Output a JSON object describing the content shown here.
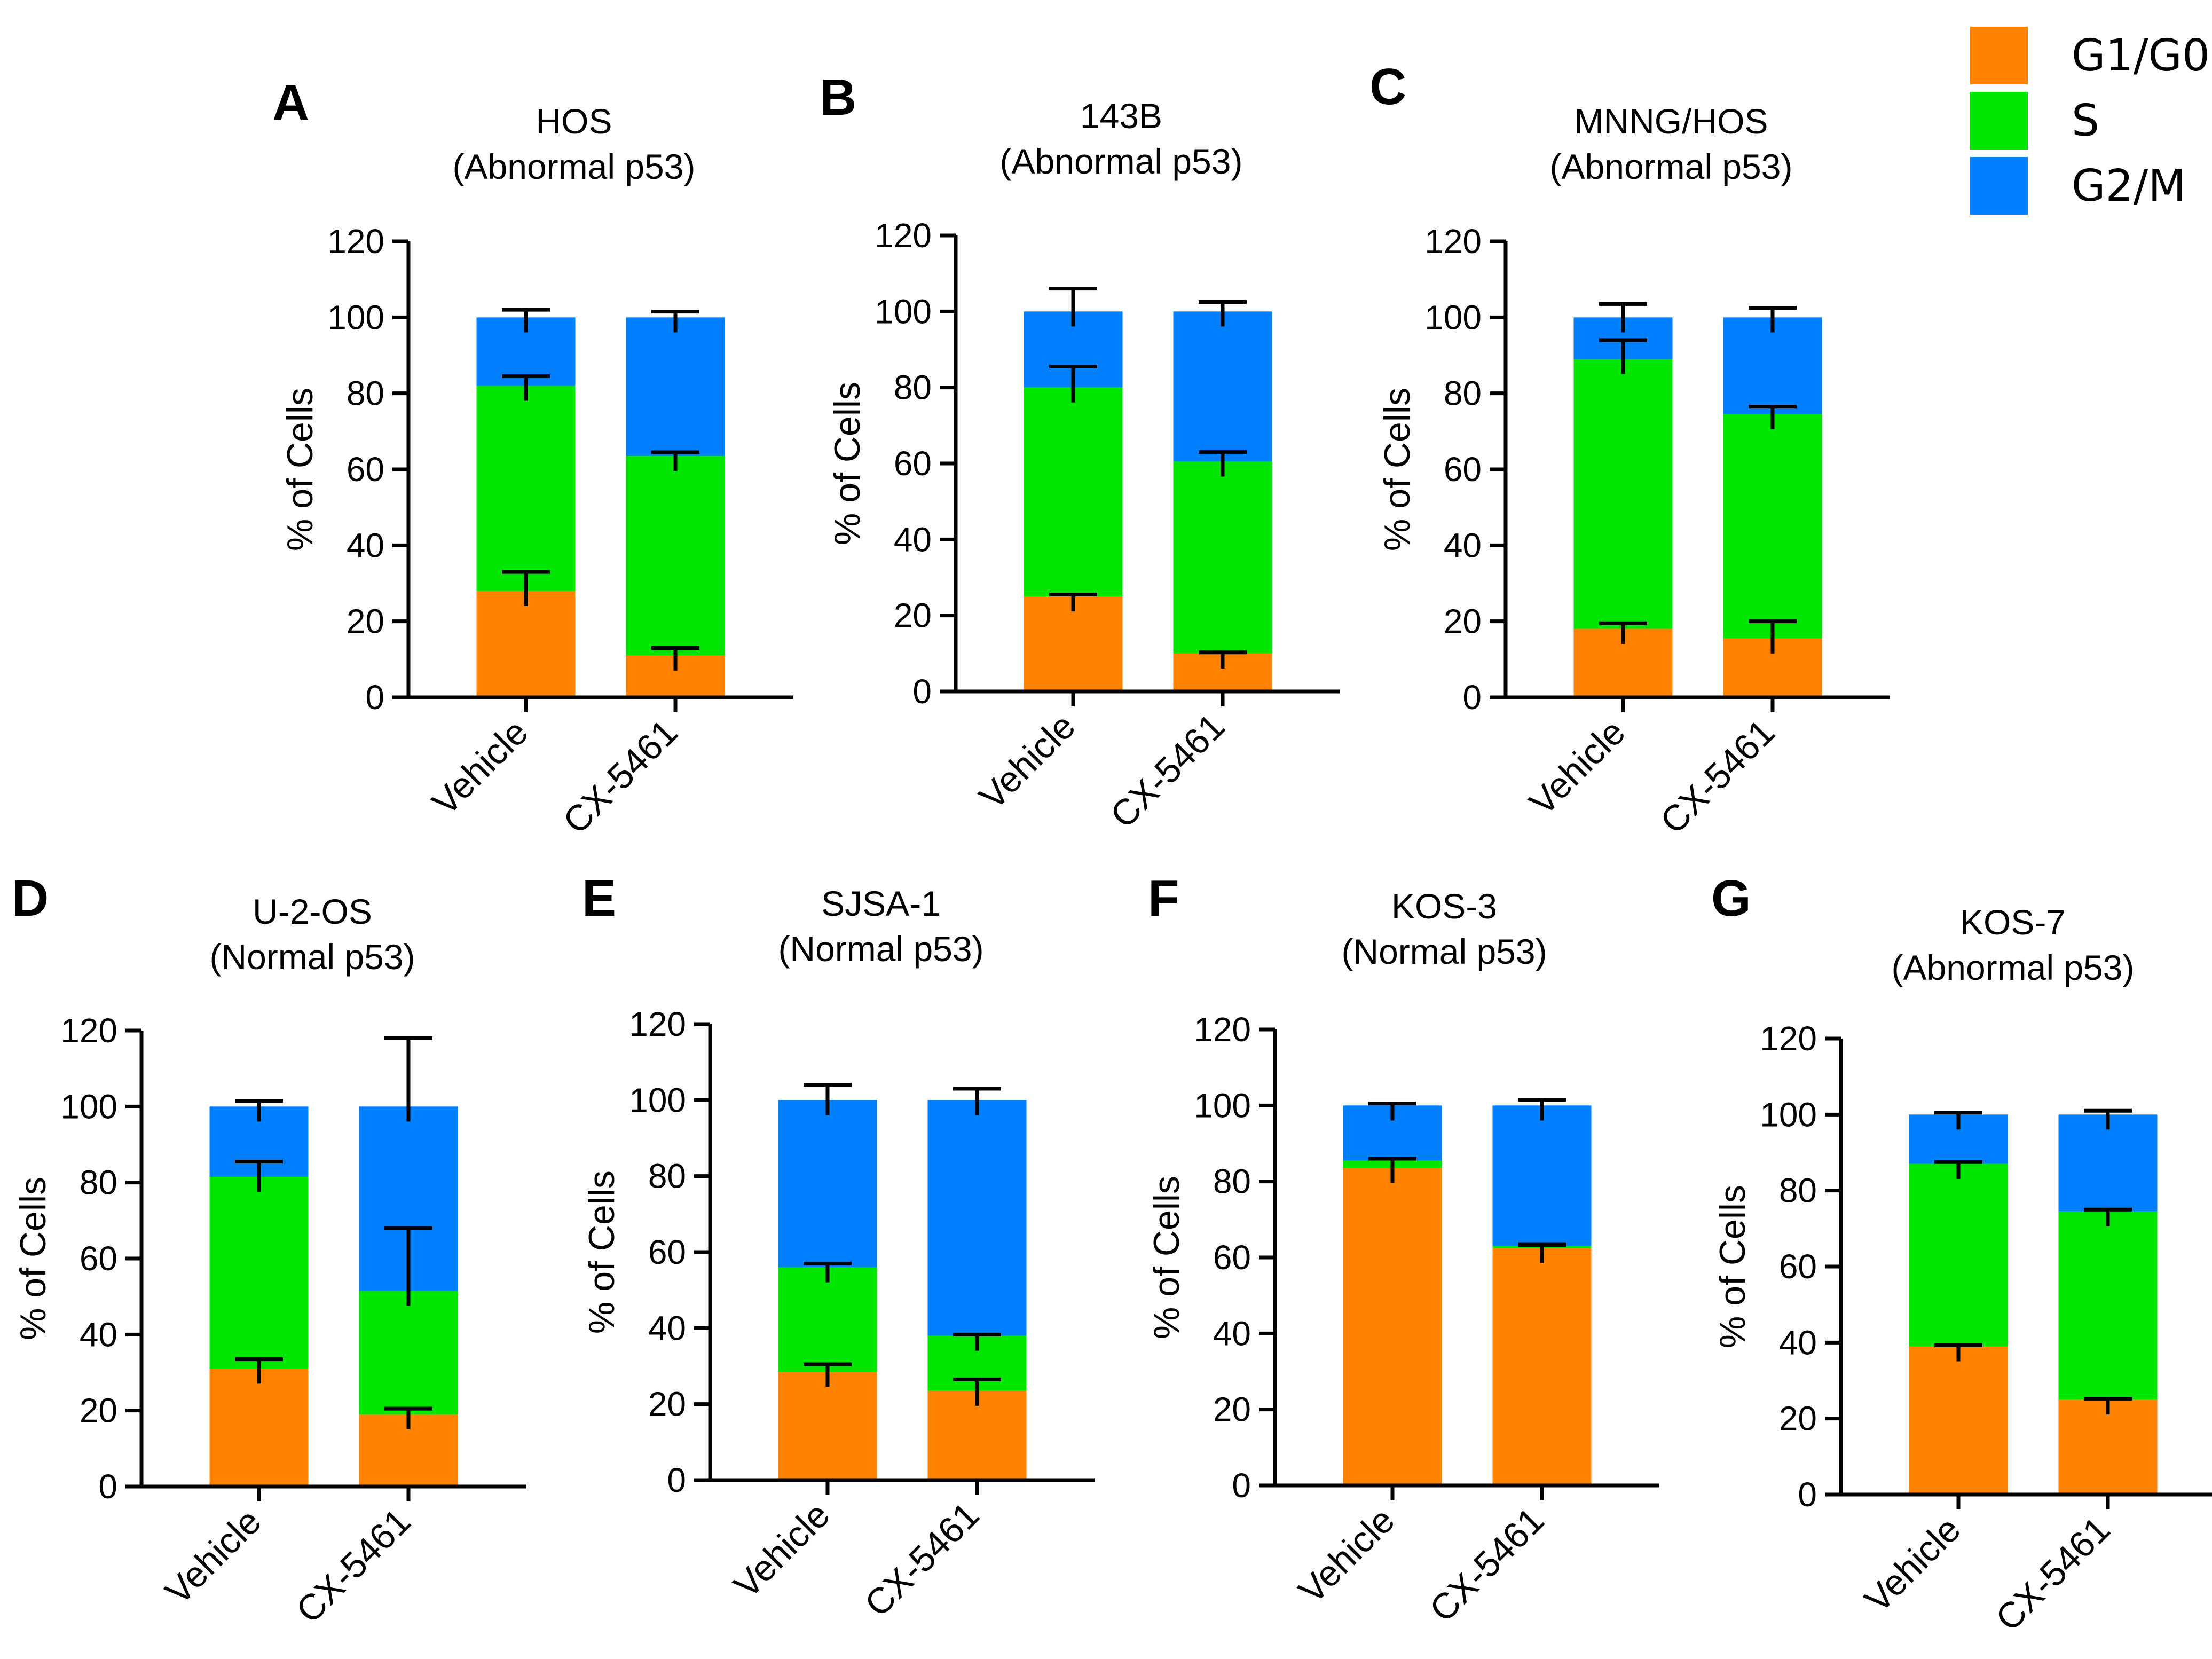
{
  "legend": [
    {
      "name": "G1/G0",
      "color": "#ff8200"
    },
    {
      "name": "S",
      "color": "#00e600"
    },
    {
      "name": "G2/M",
      "color": "#0080ff"
    }
  ],
  "chart_data": [
    {
      "type": "bar",
      "stacked": true,
      "panel": "A",
      "title_line1": "HOS",
      "title_line2": "(Abnormal p53)",
      "ylabel": "% of Cells",
      "ylim": [
        0,
        120
      ],
      "yticks": [
        0,
        20,
        40,
        60,
        80,
        100,
        120
      ],
      "categories": [
        "Vehicle",
        "CX-5461"
      ],
      "series": [
        {
          "name": "G1/G0",
          "values": [
            28,
            11
          ],
          "error": [
            5,
            2
          ]
        },
        {
          "name": "S",
          "values": [
            54,
            52.5
          ],
          "error": [
            2.5,
            1
          ]
        },
        {
          "name": "G2/M",
          "values": [
            18,
            36.5
          ],
          "error": [
            2,
            1.5
          ]
        }
      ]
    },
    {
      "type": "bar",
      "stacked": true,
      "panel": "B",
      "title_line1": "143B",
      "title_line2": "(Abnormal p53)",
      "ylabel": "% of Cells",
      "ylim": [
        0,
        120
      ],
      "yticks": [
        0,
        20,
        40,
        60,
        80,
        100,
        120
      ],
      "categories": [
        "Vehicle",
        "CX-5461"
      ],
      "series": [
        {
          "name": "G1/G0",
          "values": [
            25,
            10
          ],
          "error": [
            0.5,
            0.3
          ]
        },
        {
          "name": "S",
          "values": [
            55,
            50.5
          ],
          "error": [
            5.5,
            2.5
          ]
        },
        {
          "name": "G2/M",
          "values": [
            20,
            39.5
          ],
          "error": [
            6,
            2.5
          ]
        }
      ]
    },
    {
      "type": "bar",
      "stacked": true,
      "panel": "C",
      "title_line1": "MNNG/HOS",
      "title_line2": "(Abnormal p53)",
      "ylabel": "% of Cells",
      "ylim": [
        0,
        120
      ],
      "yticks": [
        0,
        20,
        40,
        60,
        80,
        100,
        120
      ],
      "categories": [
        "Vehicle",
        "CX-5461"
      ],
      "series": [
        {
          "name": "G1/G0",
          "values": [
            18,
            15.5
          ],
          "error": [
            1.5,
            4.5
          ]
        },
        {
          "name": "S",
          "values": [
            71,
            59
          ],
          "error": [
            5,
            2
          ]
        },
        {
          "name": "G2/M",
          "values": [
            11,
            25.5
          ],
          "error": [
            3.5,
            2.5
          ]
        }
      ]
    },
    {
      "type": "bar",
      "stacked": true,
      "panel": "D",
      "title_line1": "U-2-OS",
      "title_line2": "(Normal p53)",
      "ylabel": "% of Cells",
      "ylim": [
        0,
        120
      ],
      "yticks": [
        0,
        20,
        40,
        60,
        80,
        100,
        120
      ],
      "categories": [
        "Vehicle",
        "CX-5461"
      ],
      "series": [
        {
          "name": "G1/G0",
          "values": [
            31,
            19
          ],
          "error": [
            2.5,
            1.5
          ]
        },
        {
          "name": "S",
          "values": [
            50.5,
            32.5
          ],
          "error": [
            4,
            16.5
          ]
        },
        {
          "name": "G2/M",
          "values": [
            18.5,
            48.5
          ],
          "error": [
            1.5,
            18
          ]
        }
      ]
    },
    {
      "type": "bar",
      "stacked": true,
      "panel": "E",
      "title_line1": "SJSA-1",
      "title_line2": "(Normal p53)",
      "ylabel": "% of Cells",
      "ylim": [
        0,
        120
      ],
      "yticks": [
        0,
        20,
        40,
        60,
        80,
        100,
        120
      ],
      "categories": [
        "Vehicle",
        "CX-5461"
      ],
      "series": [
        {
          "name": "G1/G0",
          "values": [
            28.5,
            23.5
          ],
          "error": [
            2,
            3
          ]
        },
        {
          "name": "S",
          "values": [
            27.5,
            14.5
          ],
          "error": [
            1,
            0.3
          ]
        },
        {
          "name": "G2/M",
          "values": [
            44,
            62
          ],
          "error": [
            4,
            3
          ]
        }
      ]
    },
    {
      "type": "bar",
      "stacked": true,
      "panel": "F",
      "title_line1": "KOS-3",
      "title_line2": "(Normal p53)",
      "ylabel": "% of Cells",
      "ylim": [
        0,
        120
      ],
      "yticks": [
        0,
        20,
        40,
        60,
        80,
        100,
        120
      ],
      "categories": [
        "Vehicle",
        "CX-5461"
      ],
      "series": [
        {
          "name": "G1/G0",
          "values": [
            83.5,
            62.5
          ],
          "error": [
            2.5,
            1
          ]
        },
        {
          "name": "S",
          "values": [
            2,
            0.5
          ],
          "error": [
            0.5,
            0.2
          ]
        },
        {
          "name": "G2/M",
          "values": [
            14.5,
            37
          ],
          "error": [
            0.5,
            1.5
          ]
        }
      ]
    },
    {
      "type": "bar",
      "stacked": true,
      "panel": "G",
      "title_line1": "KOS-7",
      "title_line2": "(Abnormal p53)",
      "ylabel": "% of Cells",
      "ylim": [
        0,
        120
      ],
      "yticks": [
        0,
        20,
        40,
        60,
        80,
        100,
        120
      ],
      "categories": [
        "Vehicle",
        "CX-5461"
      ],
      "series": [
        {
          "name": "G1/G0",
          "values": [
            39,
            25
          ],
          "error": [
            0.3,
            0.2
          ]
        },
        {
          "name": "S",
          "values": [
            48,
            49.5
          ],
          "error": [
            0.5,
            0.5
          ]
        },
        {
          "name": "G2/M",
          "values": [
            13,
            25.5
          ],
          "error": [
            0.5,
            1
          ]
        }
      ]
    }
  ]
}
